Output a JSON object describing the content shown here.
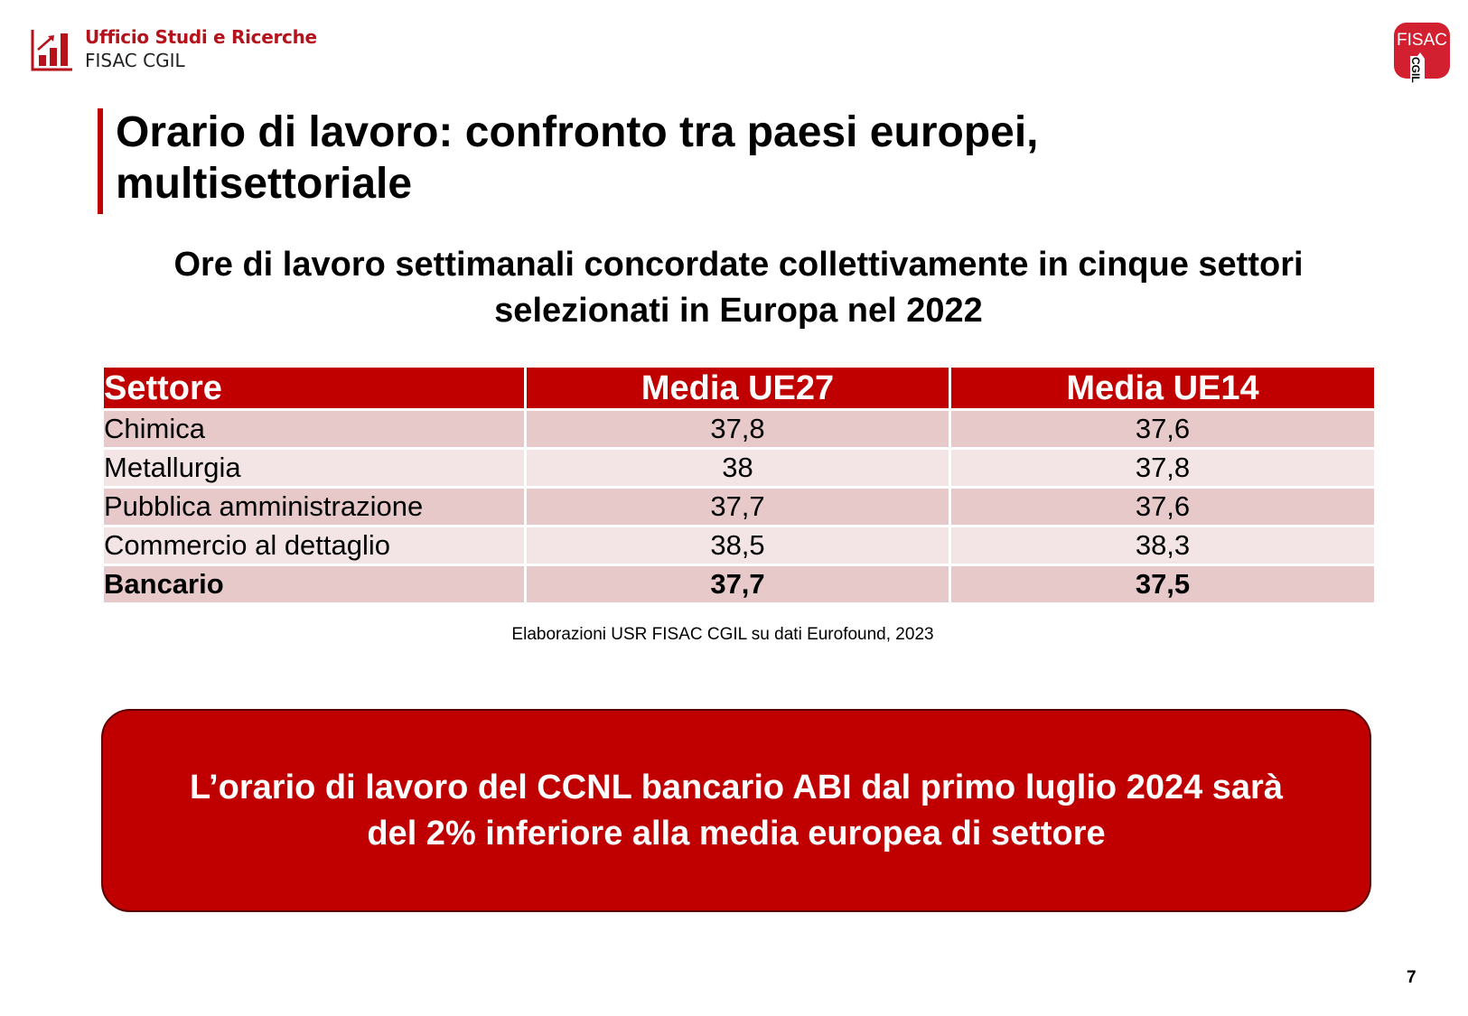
{
  "header": {
    "org_name": "Ufficio Studi e Ricerche",
    "org_sub": "FISAC CGIL",
    "right_logo_text": "FISAC",
    "right_logo_subtext": "CGIL",
    "accent_color": "#c00000"
  },
  "title": {
    "line1": "Orario di lavoro: confronto tra paesi europei,",
    "line2": "multisettoriale"
  },
  "subtitle": {
    "line1": "Ore di lavoro settimanali concordate collettivamente in cinque settori",
    "line2": "selezionati in Europa nel 2022"
  },
  "table": {
    "headers": [
      "Settore",
      "Media UE27",
      "Media UE14"
    ],
    "rows": [
      [
        "Chimica",
        "37,8",
        "37,6"
      ],
      [
        "Metallurgia",
        "38",
        "37,8"
      ],
      [
        "Pubblica amministrazione",
        "37,7",
        "37,6"
      ],
      [
        "Commercio al dettaglio",
        "38,5",
        "38,3"
      ],
      [
        "Bancario",
        "37,7",
        "37,5"
      ]
    ]
  },
  "source": "Elaborazioni USR FISAC CGIL su dati Eurofound, 2023",
  "callout": {
    "line1": "L’orario di lavoro del CCNL bancario ABI dal primo luglio 2024 sarà",
    "line2": "del 2% inferiore alla media europea di settore"
  },
  "page_number": "7"
}
